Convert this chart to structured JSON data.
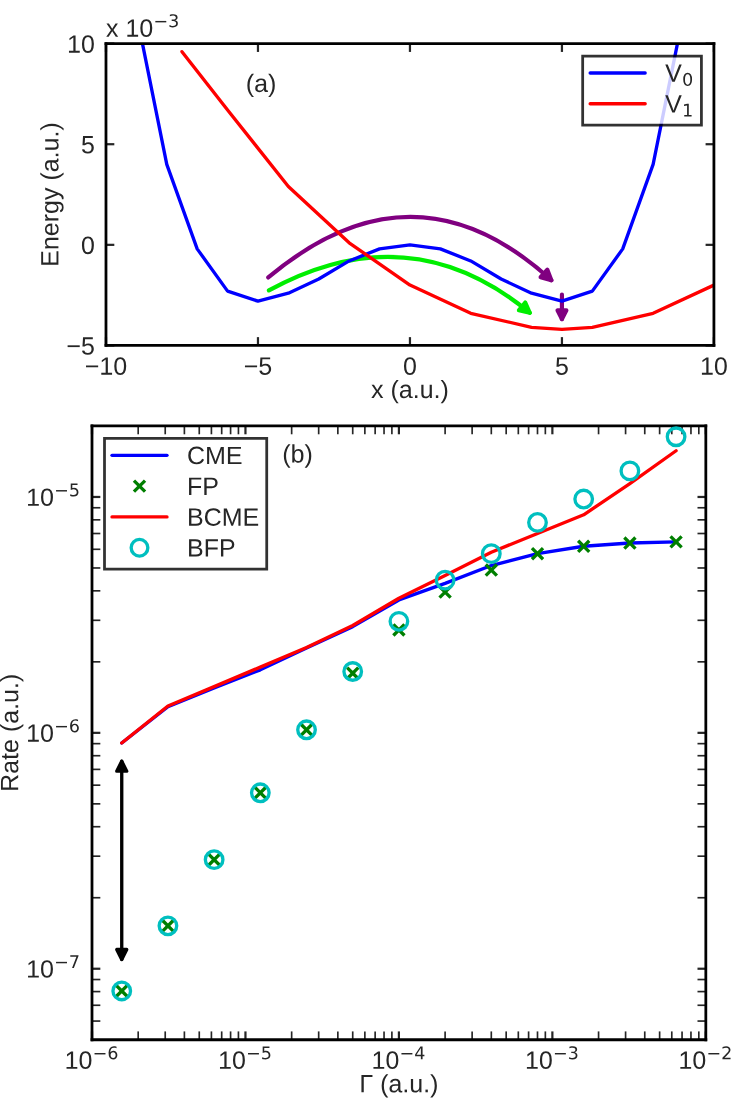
{
  "chart_data": [
    {
      "type": "line",
      "xlabel": "x (a.u.)",
      "ylabel": "Energy (a.u.)",
      "annotations": [
        "(a)",
        "x 10$^{−3}$"
      ],
      "xlim": [
        -10,
        10
      ],
      "ylim": [
        -5,
        10
      ],
      "xticks": [
        {
          "value": -10,
          "label": "−10"
        },
        {
          "value": -5,
          "label": "−5"
        },
        0,
        5,
        10
      ],
      "yticks": [
        {
          "value": -5,
          "label": "−5"
        },
        0,
        5,
        10
      ],
      "grid": false,
      "legend": "top right",
      "series": [
        {
          "name": "V$_{0}$",
          "color": "#0000ff",
          "x": [
            -8.8,
            -8,
            -7,
            -6,
            -5,
            -4,
            -3,
            -2,
            -1,
            0,
            1,
            2,
            3,
            4,
            5,
            6,
            7,
            8,
            8.8
          ],
          "values": [
            10,
            4.0,
            -0.2,
            -2.3,
            -2.8,
            -2.4,
            -1.7,
            -0.8,
            -0.2,
            0,
            -0.2,
            -0.8,
            -1.7,
            -2.4,
            -2.8,
            -2.3,
            -0.2,
            4.0,
            10
          ]
        },
        {
          "name": "V$_{1}$",
          "color": "#ff0000",
          "x": [
            -7.5,
            -6,
            -4,
            -2,
            0,
            2,
            4,
            5,
            6,
            8,
            10
          ],
          "values": [
            9.6,
            6.7,
            2.9,
            0.1,
            -2.0,
            -3.4,
            -4.1,
            -4.2,
            -4.1,
            -3.4,
            -2.0
          ]
        }
      ]
    },
    {
      "type": "line",
      "xlabel": "Γ (a.u.)",
      "ylabel": "Rate (a.u.)",
      "annotations": [
        "(b)"
      ],
      "log": "xy",
      "xlim": [
        1e-06,
        0.01
      ],
      "ylim": [
        5e-08,
        2e-05
      ],
      "xticks": [
        {
          "value": 1e-06,
          "label": "10$^{−6}$"
        },
        {
          "value": 1e-05,
          "label": "10$^{−5}$"
        },
        {
          "value": 0.0001,
          "label": "10$^{−4}$"
        },
        {
          "value": 0.001,
          "label": "10$^{−3}$"
        },
        {
          "value": 0.01,
          "label": "10$^{−2}$"
        }
      ],
      "yticks": [
        {
          "value": 1e-07,
          "label": "10$^{−7}$"
        },
        {
          "value": 1e-06,
          "label": "10$^{−6}$"
        },
        {
          "value": 1e-05,
          "label": "10$^{−5}$"
        }
      ],
      "grid": false,
      "legend": "top left",
      "x": [
        1.5625e-06,
        3.125e-06,
        6.25e-06,
        1.25e-05,
        2.5e-05,
        5e-05,
        0.0001,
        0.0002,
        0.0004,
        0.0008,
        0.0016,
        0.0032,
        0.0064
      ],
      "series": [
        {
          "name": "CME",
          "type": "line",
          "color": "#0000ff",
          "values": [
            9.06e-07,
            1.29e-06,
            1.55e-06,
            1.85e-06,
            2.29e-06,
            2.82e-06,
            3.66e-06,
            4.3e-06,
            5.12e-06,
            5.75e-06,
            6.18e-06,
            6.38e-06,
            6.45e-06
          ]
        },
        {
          "name": "FP",
          "type": "scatter",
          "marker": "cross",
          "color": "#007f00",
          "values": [
            8.05e-08,
            1.52e-07,
            2.9e-07,
            5.57e-07,
            1.03e-06,
            1.79e-06,
            2.73e-06,
            3.95e-06,
            4.9e-06,
            5.75e-06,
            6.18e-06,
            6.38e-06,
            6.45e-06
          ]
        },
        {
          "name": "BCME",
          "type": "line",
          "color": "#ff0000",
          "values": [
            9.06e-07,
            1.3e-06,
            1.57e-06,
            1.9e-06,
            2.3e-06,
            2.85e-06,
            3.72e-06,
            4.65e-06,
            5.83e-06,
            7e-06,
            8.4e-06,
            1.14e-05,
            1.57e-05
          ]
        },
        {
          "name": "BFP",
          "type": "scatter",
          "marker": "circle",
          "color": "#00bfbf",
          "values": [
            8.05e-08,
            1.52e-07,
            2.9e-07,
            5.57e-07,
            1.03e-06,
            1.82e-06,
            2.97e-06,
            4.44e-06,
            5.75e-06,
            7.8e-06,
            9.8e-06,
            1.29e-05,
            1.8e-05
          ]
        }
      ]
    }
  ]
}
